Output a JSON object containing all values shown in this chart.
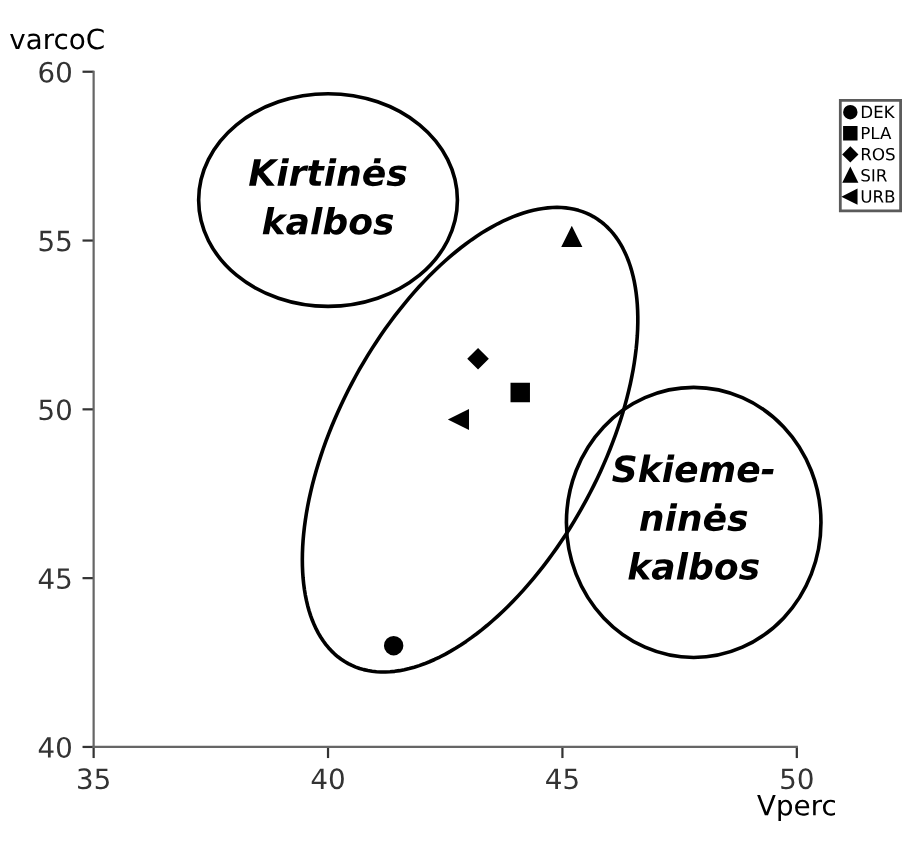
{
  "chart_data": {
    "type": "scatter",
    "xlabel": "Vperc",
    "ylabel": "varcoC",
    "xlim": [
      35,
      50
    ],
    "xticks": [
      35,
      40,
      45,
      50
    ],
    "ylim": [
      40,
      60
    ],
    "yticks": [
      40,
      45,
      50,
      55,
      60
    ],
    "grid": false,
    "legend": "top right",
    "series": [
      {
        "name": "DEK",
        "color": "#000000",
        "marker": "circle",
        "x": [
          41.4
        ],
        "values": [
          43.0
        ]
      },
      {
        "name": "PLA",
        "color": "#000000",
        "marker": "square",
        "x": [
          44.1
        ],
        "values": [
          50.5
        ]
      },
      {
        "name": "ROS",
        "color": "#000000",
        "marker": "diamond",
        "x": [
          43.2
        ],
        "values": [
          51.5
        ]
      },
      {
        "name": "SIR",
        "color": "#000000",
        "marker": "triangle",
        "x": [
          45.2
        ],
        "values": [
          55.1
        ]
      },
      {
        "name": "URB",
        "color": "#000000",
        "marker": "triangle-left",
        "x": [
          42.8
        ],
        "values": [
          49.7
        ]
      }
    ],
    "annotations": [
      "Kirtinės\nkalbos",
      "Skieme-\nninės\nkalbos"
    ]
  }
}
